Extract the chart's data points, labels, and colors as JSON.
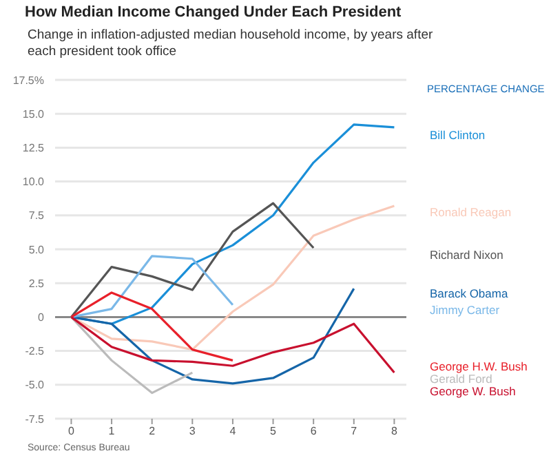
{
  "chart_data": {
    "type": "line",
    "title": "How Median Income Changed Under Each President",
    "subtitle": "Change in inflation-adjusted median household income, by years after each president took office",
    "legend_title": "PERCENTAGE CHANGE",
    "annotations": [
      "Source: Census Bureau"
    ],
    "x": [
      0,
      1,
      2,
      3,
      4,
      5,
      6,
      7,
      8
    ],
    "xlim": [
      -0.4,
      8.3
    ],
    "xticks": [
      0,
      1,
      2,
      3,
      4,
      5,
      6,
      7,
      8
    ],
    "ylim": [
      -7.5,
      17.5
    ],
    "yticks": [
      -7.5,
      {
        "value": -5,
        "label": "-5.0"
      },
      -2.5,
      0,
      2.5,
      {
        "value": 5,
        "label": "5.0"
      },
      7.5,
      {
        "value": 10,
        "label": "10.0"
      },
      12.5,
      {
        "value": 15,
        "label": "15.0"
      },
      {
        "value": 17.5,
        "label": "17.5%"
      }
    ],
    "grid": "y",
    "legend": "right",
    "marker": "none",
    "line_style": "solid",
    "ref_lines": [
      {
        "axis": "y",
        "value": 0,
        "color": "#888888"
      }
    ],
    "series": [
      {
        "name": "Bill Clinton",
        "color": "#1a8fd8",
        "values": [
          0,
          -0.5,
          0.7,
          3.9,
          5.3,
          7.5,
          11.4,
          14.2,
          14.0
        ]
      },
      {
        "name": "Ronald Reagan",
        "color": "#f9c9b8",
        "values": [
          0,
          -1.6,
          -1.8,
          -2.4,
          0.4,
          2.4,
          6.0,
          7.2,
          8.2
        ]
      },
      {
        "name": "Richard Nixon",
        "color": "#555555",
        "values": [
          0,
          3.7,
          3.0,
          2.0,
          6.3,
          8.4,
          5.1,
          null,
          null
        ]
      },
      {
        "name": "Barack Obama",
        "color": "#1565a8",
        "values": [
          0,
          -0.5,
          -3.2,
          -4.6,
          -4.9,
          -4.5,
          -3.0,
          2.1,
          null
        ]
      },
      {
        "name": "Jimmy Carter",
        "color": "#7ab8e8",
        "values": [
          0,
          0.6,
          4.5,
          4.3,
          0.9,
          null,
          null,
          null,
          null
        ]
      },
      {
        "name": "George H.W. Bush",
        "color": "#e8202a",
        "values": [
          0,
          1.8,
          0.6,
          -2.4,
          -3.2,
          null,
          null,
          null,
          null
        ]
      },
      {
        "name": "Gerald Ford",
        "color": "#bbbbbb",
        "values": [
          0,
          -3.2,
          -5.6,
          -4.1,
          null,
          null,
          null,
          null,
          null
        ]
      },
      {
        "name": "George W. Bush",
        "color": "#c8102e",
        "values": [
          0,
          -2.2,
          -3.2,
          -3.3,
          -3.6,
          -2.6,
          -1.9,
          -0.5,
          -4.1
        ]
      }
    ]
  }
}
